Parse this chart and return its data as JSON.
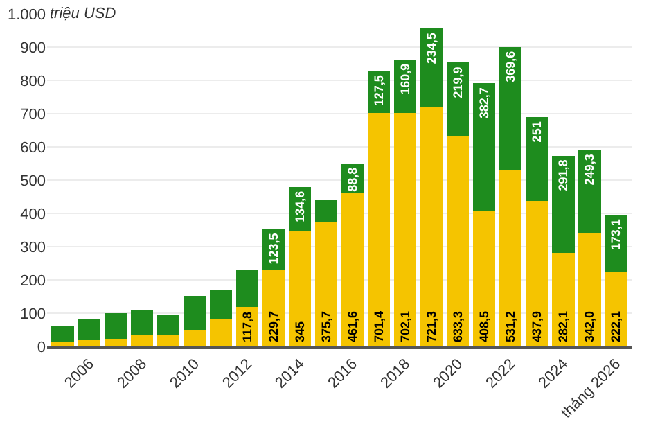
{
  "chart_data": {
    "type": "bar",
    "stacked": true,
    "ylabel": "triệu USD",
    "categories": [
      null,
      "2006",
      null,
      "2008",
      null,
      "2010",
      null,
      "2012",
      null,
      "2014",
      null,
      "2016",
      null,
      "2018",
      null,
      "2020",
      null,
      "2022",
      null,
      "2024",
      null,
      "tháng 2026"
    ],
    "series": [
      {
        "color": "#f5c400",
        "values": [
          13,
          19,
          23,
          33,
          33,
          51,
          84,
          117.8,
          229.7,
          345,
          375.7,
          461.6,
          701.4,
          702.1,
          721.3,
          633.3,
          408.5,
          531.2,
          437.9,
          282.1,
          342.0,
          222.1
        ],
        "value_labels": [
          null,
          null,
          null,
          null,
          null,
          null,
          null,
          "117,8",
          "229,7",
          "345",
          "375,7",
          "461,6",
          "701,4",
          "702,1",
          "721,3",
          "633,3",
          "408,5",
          "531,2",
          "437,9",
          "282,1",
          "342,0",
          "222,1"
        ]
      },
      {
        "color": "#1e8c1e",
        "values": [
          47,
          64,
          77,
          76,
          63,
          102,
          85,
          111,
          123.5,
          134.6,
          64,
          88.8,
          127.5,
          160.9,
          234.5,
          219.9,
          382.7,
          369.6,
          251,
          291.8,
          249.3,
          173.1
        ],
        "value_labels": [
          null,
          null,
          null,
          null,
          null,
          null,
          null,
          null,
          "123,5",
          "134,6",
          null,
          "88,8",
          "127,5",
          "160,9",
          "234,5",
          "219,9",
          "382,7",
          "369,6",
          "251",
          "291,8",
          "249,3",
          "173,1"
        ]
      }
    ],
    "ylim": [
      0,
      1000
    ],
    "yticks": [
      0,
      100,
      200,
      300,
      400,
      500,
      600,
      700,
      800,
      900,
      {
        "value": 1000,
        "label": "1.000"
      }
    ],
    "grid": "y",
    "legend": false
  }
}
